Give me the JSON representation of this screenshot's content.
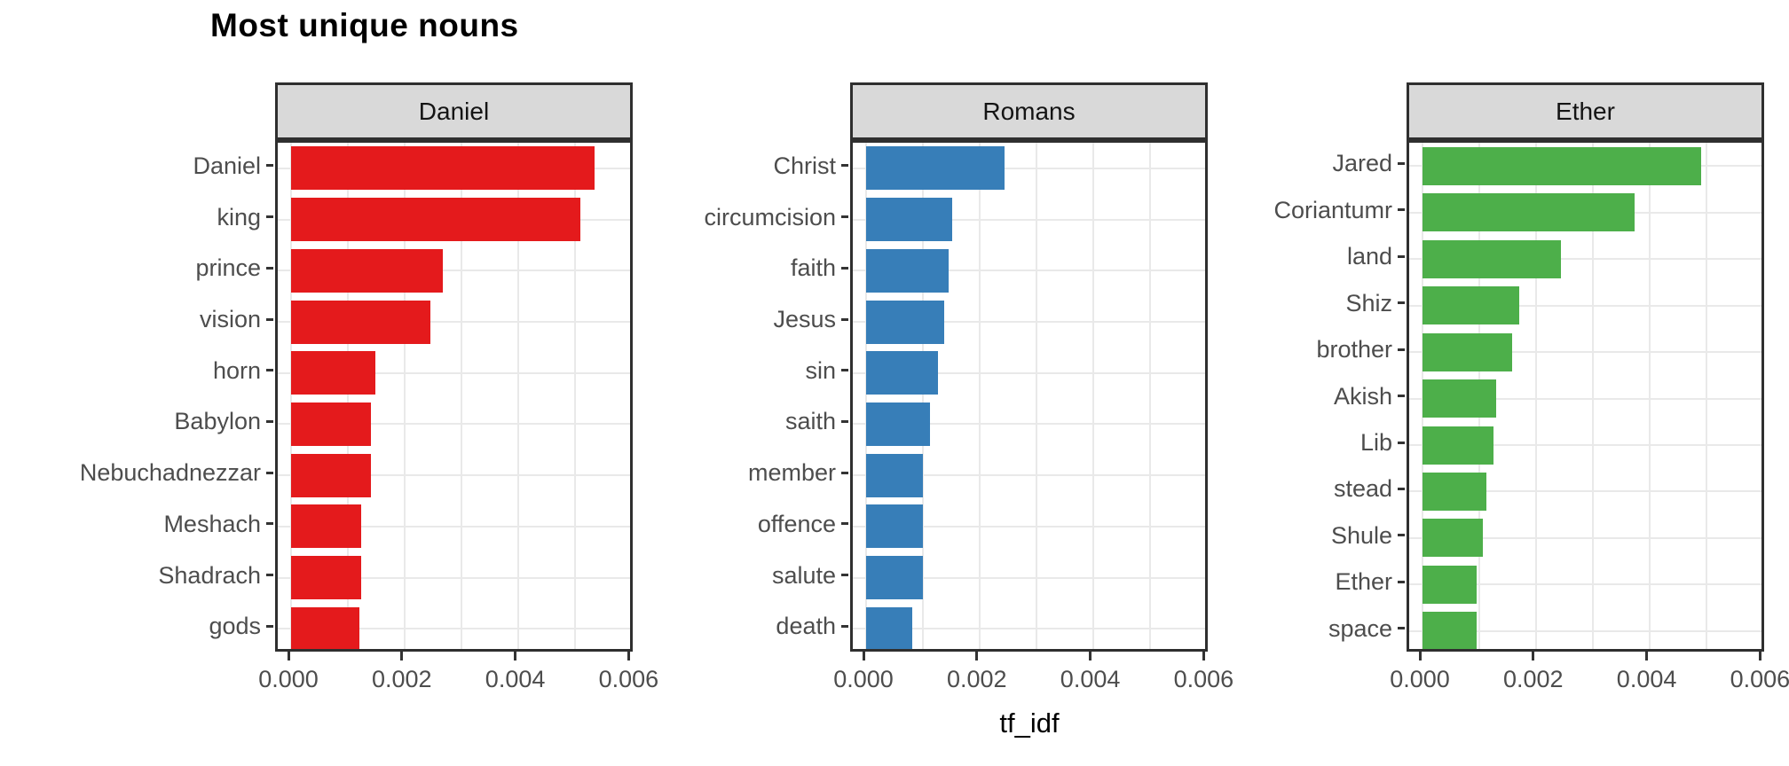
{
  "chart_data": {
    "type": "bar",
    "orientation": "horizontal",
    "title": "Most unique nouns",
    "xlabel": "tf_idf",
    "xlim": [
      0,
      0.0061
    ],
    "x_tick_values": [
      0.0,
      0.002,
      0.004,
      0.006
    ],
    "x_tick_labels": [
      "0.000",
      "0.002",
      "0.004",
      "0.006"
    ],
    "x_minor_gridlines": [
      0.001,
      0.003,
      0.005
    ],
    "grid": true,
    "legend": "none",
    "facets": [
      {
        "label": "Daniel",
        "color": "#E41A1C",
        "categories": [
          "Daniel",
          "king",
          "prince",
          "vision",
          "horn",
          "Babylon",
          "Nebuchadnezzar",
          "Meshach",
          "Shadrach",
          "gods"
        ],
        "values": [
          0.00535,
          0.0051,
          0.00268,
          0.00245,
          0.00148,
          0.0014,
          0.0014,
          0.00123,
          0.00123,
          0.00121
        ]
      },
      {
        "label": "Romans",
        "color": "#377EB8",
        "categories": [
          "Christ",
          "circumcision",
          "faith",
          "Jesus",
          "sin",
          "saith",
          "member",
          "offence",
          "salute",
          "death"
        ],
        "values": [
          0.00244,
          0.00151,
          0.00146,
          0.00138,
          0.00127,
          0.00112,
          0.001,
          0.001,
          0.001,
          0.00082
        ]
      },
      {
        "label": "Ether",
        "color": "#4DAF4A",
        "categories": [
          "Jared",
          "Coriantumr",
          "land",
          "Shiz",
          "brother",
          "Akish",
          "Lib",
          "stead",
          "Shule",
          "Ether",
          "space"
        ],
        "values": [
          0.00491,
          0.00374,
          0.00244,
          0.00171,
          0.00158,
          0.0013,
          0.00125,
          0.00113,
          0.00106,
          0.00095,
          0.00095
        ]
      }
    ]
  },
  "theme": {
    "strip_background": "#D9D9D9",
    "strip_text_color": "#141414",
    "panel_border_color": "#2f2f2f",
    "gridline_color": "#E9E9E9",
    "axis_text_color": "#4d4d4d",
    "tick_mark_color": "#333333",
    "title_color": "#000000"
  }
}
